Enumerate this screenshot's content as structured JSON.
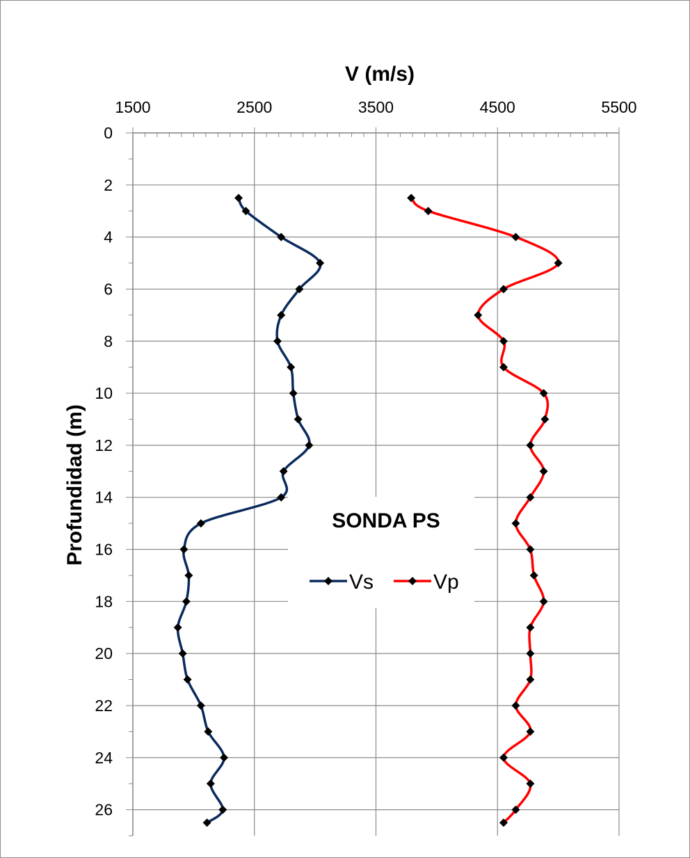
{
  "chart_data": {
    "type": "line",
    "title": "SONDA PS",
    "xlabel": "V (m/s)",
    "ylabel": "Profundidad (m)",
    "xlim": [
      1500,
      5500
    ],
    "ylim": [
      0,
      27
    ],
    "y_inverted": true,
    "x_axis_position": "top",
    "x_ticks": [
      "1500",
      "2500",
      "3500",
      "4500",
      "5500"
    ],
    "y_ticks": [
      "0",
      "2",
      "4",
      "6",
      "8",
      "10",
      "12",
      "14",
      "16",
      "18",
      "20",
      "22",
      "24",
      "26"
    ],
    "grid": true,
    "legend_position": "center",
    "series": [
      {
        "name": "Vs",
        "color": "#0a2a5e",
        "marker": "diamond",
        "points": [
          [
            2370,
            2.5
          ],
          [
            2430,
            3
          ],
          [
            2720,
            4
          ],
          [
            3040,
            5
          ],
          [
            2870,
            6
          ],
          [
            2720,
            7
          ],
          [
            2690,
            8
          ],
          [
            2800,
            9
          ],
          [
            2820,
            10
          ],
          [
            2860,
            11
          ],
          [
            2950,
            12
          ],
          [
            2740,
            13
          ],
          [
            2720,
            14
          ],
          [
            2060,
            15
          ],
          [
            1920,
            16
          ],
          [
            1960,
            17
          ],
          [
            1940,
            18
          ],
          [
            1870,
            19
          ],
          [
            1910,
            20
          ],
          [
            1950,
            21
          ],
          [
            2060,
            22
          ],
          [
            2120,
            23
          ],
          [
            2250,
            24
          ],
          [
            2140,
            25
          ],
          [
            2240,
            26
          ],
          [
            2110,
            26.5
          ]
        ]
      },
      {
        "name": "Vp",
        "color": "#ff0000",
        "marker": "diamond",
        "points": [
          [
            3790,
            2.5
          ],
          [
            3930,
            3
          ],
          [
            4650,
            4
          ],
          [
            5000,
            5
          ],
          [
            4550,
            6
          ],
          [
            4340,
            7
          ],
          [
            4550,
            8
          ],
          [
            4550,
            9
          ],
          [
            4880,
            10
          ],
          [
            4890,
            11
          ],
          [
            4770,
            12
          ],
          [
            4880,
            13
          ],
          [
            4770,
            14
          ],
          [
            4650,
            15
          ],
          [
            4770,
            16
          ],
          [
            4800,
            17
          ],
          [
            4880,
            18
          ],
          [
            4770,
            19
          ],
          [
            4770,
            20
          ],
          [
            4770,
            21
          ],
          [
            4650,
            22
          ],
          [
            4770,
            23
          ],
          [
            4550,
            24
          ],
          [
            4770,
            25
          ],
          [
            4650,
            26
          ],
          [
            4550,
            26.5
          ]
        ]
      }
    ]
  }
}
